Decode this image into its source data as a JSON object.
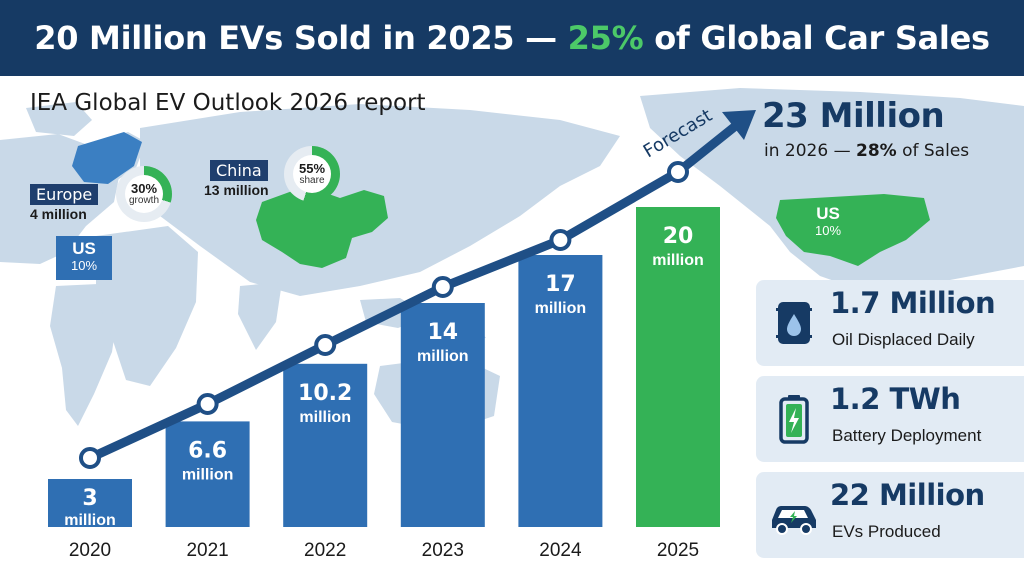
{
  "header": {
    "title_pre": "20 Million EVs Sold in 2025 — ",
    "title_highlight": "25%",
    "title_post": " of Global Car Sales"
  },
  "subtitle": "IEA Global EV Outlook 2026 report",
  "regions": {
    "europe": {
      "name": "Europe",
      "sub": "4 million",
      "donut_value": "30%",
      "donut_caption": "growth",
      "donut_fraction": 0.3
    },
    "china": {
      "name": "China",
      "sub": "13 million",
      "donut_value": "55%",
      "donut_caption": "share",
      "donut_fraction": 0.55
    },
    "us_badge": {
      "name": "US",
      "share": "10%"
    },
    "us_map": {
      "name": "US",
      "share": "10%"
    }
  },
  "forecast": {
    "label": "Forecast",
    "big": "23 Million",
    "small_pre": "in 2026 — ",
    "small_bold": "28%",
    "small_post": " of Sales"
  },
  "stats": [
    {
      "value": "1.7 Million",
      "label": "Oil Displaced Daily",
      "icon": "oil-barrel-icon"
    },
    {
      "value": "1.2 TWh",
      "label": "Battery Deployment",
      "icon": "battery-icon"
    },
    {
      "value": "22 Million",
      "label": "EVs Produced",
      "icon": "car-icon"
    }
  ],
  "colors": {
    "navy": "#163a64",
    "bar_blue": "#2f6fb3",
    "bar_green": "#34b256",
    "accent_green": "#4cc968",
    "line": "#1f4f86",
    "map": "#c9d9e8",
    "card": "#e2ebf4"
  },
  "chart_data": {
    "type": "bar",
    "categories": [
      "2020",
      "2021",
      "2022",
      "2023",
      "2024",
      "2025"
    ],
    "values": [
      3,
      6.6,
      10.2,
      14,
      17,
      20
    ],
    "value_labels": [
      "3",
      "6.6",
      "10.2",
      "14",
      "17",
      "20"
    ],
    "unit_label": "million",
    "highlight_index": 5,
    "trend_line": true,
    "ylim": [
      0,
      20
    ]
  }
}
